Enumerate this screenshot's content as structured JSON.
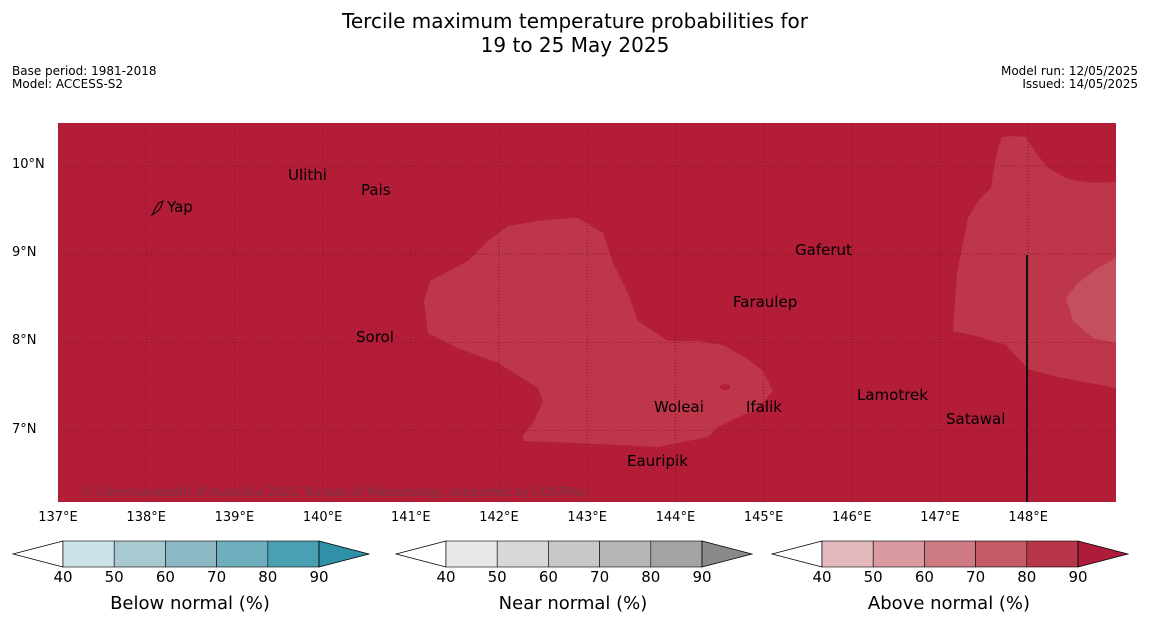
{
  "title_line1": "Tercile maximum temperature probabilities for",
  "title_line2": "19 to 25 May 2025",
  "base_period": "Base period: 1981-2018",
  "model": "Model: ACCESS-S2",
  "model_run": "Model run: 12/05/2025",
  "issued": "Issued: 14/05/2025",
  "copyright": "© Commonwealth of Australia 2025, Bureau of Meteorology, supported by COSPPac",
  "lat_labels": [
    "10°N",
    "9°N",
    "8°N",
    "7°N"
  ],
  "lon_labels": [
    "137°E",
    "138°E",
    "139°E",
    "140°E",
    "141°E",
    "142°E",
    "143°E",
    "144°E",
    "145°E",
    "146°E",
    "147°E",
    "148°E"
  ],
  "places": [
    "Ulithi",
    "Pais",
    "Yap",
    "Gaferut",
    "Faraulep",
    "Sorol",
    "Lamotrek",
    "Woleai",
    "Ifalik",
    "Satawal",
    "Eauripik"
  ],
  "colorbars": [
    {
      "title": "Below normal (%)",
      "ticks": [
        "40",
        "50",
        "60",
        "70",
        "80",
        "90"
      ],
      "colors": [
        "#cce3ea",
        "#a9c9d0",
        "#8bb8c4",
        "#6eafbd",
        "#4aa0b3",
        "#2f90a8"
      ]
    },
    {
      "title": "Near normal (%)",
      "ticks": [
        "40",
        "50",
        "60",
        "70",
        "80",
        "90"
      ],
      "colors": [
        "#e8e8e8",
        "#d8d8d8",
        "#c8c8c8",
        "#b6b6b6",
        "#a3a3a3",
        "#8a8a8a"
      ]
    },
    {
      "title": "Above normal (%)",
      "ticks": [
        "40",
        "50",
        "60",
        "70",
        "80",
        "90"
      ],
      "colors": [
        "#e4b9bd",
        "#d99aa0",
        "#ce7a82",
        "#c45a66",
        "#b73549",
        "#ad1c3b"
      ]
    }
  ],
  "map_colors": {
    "dominant": "#b31d38",
    "lighter": "#bd3649",
    "lightest": "#c4505d"
  }
}
